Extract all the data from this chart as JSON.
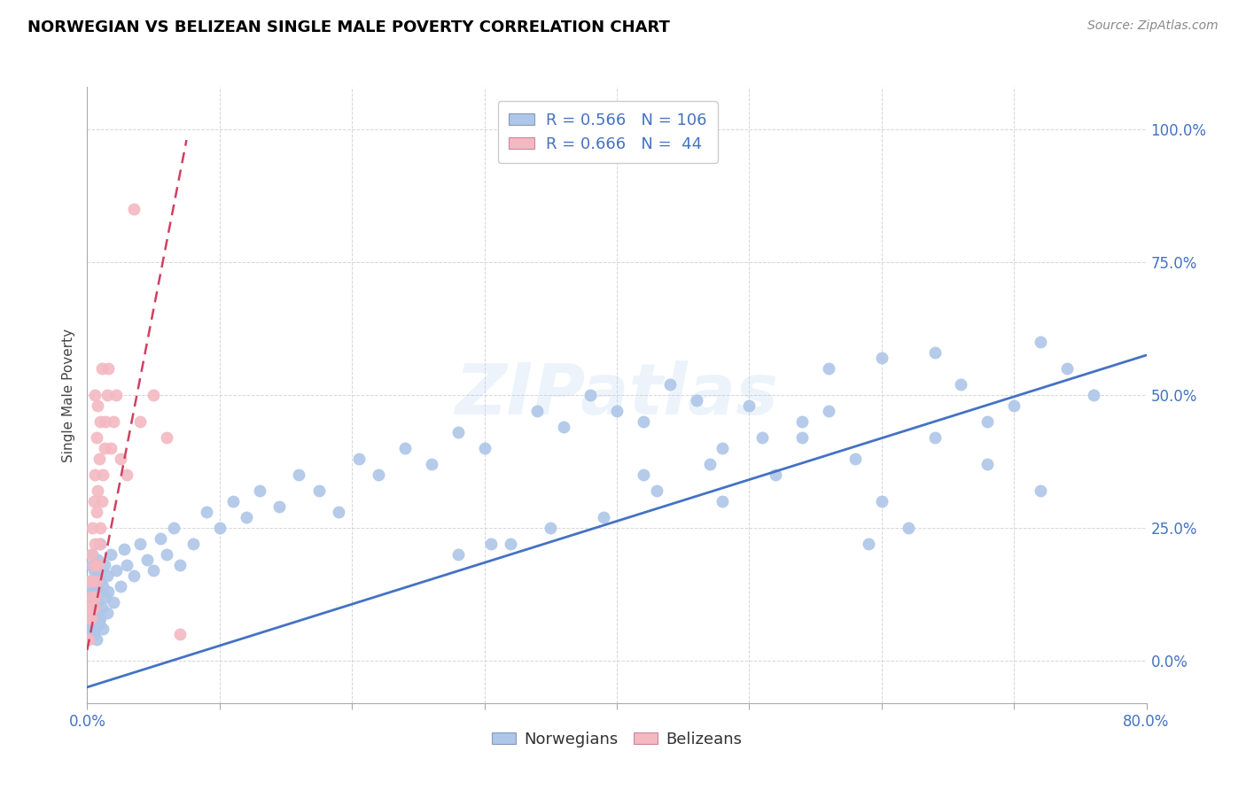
{
  "title": "NORWEGIAN VS BELIZEAN SINGLE MALE POVERTY CORRELATION CHART",
  "source": "Source: ZipAtlas.com",
  "ylabel": "Single Male Poverty",
  "xlim": [
    0.0,
    0.8
  ],
  "ylim": [
    -0.08,
    1.08
  ],
  "norwegian_color": "#aec6e8",
  "belizean_color": "#f4b8c1",
  "trend_norwegian_color": "#4472c4",
  "trend_belizean_color": "#d04060",
  "R_norwegian": 0.566,
  "N_norwegian": 106,
  "R_belizean": 0.666,
  "N_belizean": 44,
  "watermark": "ZIPatlas",
  "background_color": "#ffffff",
  "grid_color": "#cccccc",
  "title_color": "#000000",
  "source_color": "#888888",
  "nor_trend_x": [
    0.0,
    0.8
  ],
  "nor_trend_y": [
    -0.05,
    0.575
  ],
  "bel_trend_x": [
    0.0,
    0.075
  ],
  "bel_trend_y": [
    0.02,
    0.98
  ],
  "nor_x": [
    0.001,
    0.001,
    0.002,
    0.002,
    0.002,
    0.003,
    0.003,
    0.003,
    0.003,
    0.004,
    0.004,
    0.004,
    0.005,
    0.005,
    0.005,
    0.005,
    0.006,
    0.006,
    0.006,
    0.007,
    0.007,
    0.007,
    0.008,
    0.008,
    0.009,
    0.009,
    0.01,
    0.01,
    0.01,
    0.011,
    0.012,
    0.012,
    0.013,
    0.014,
    0.015,
    0.015,
    0.016,
    0.018,
    0.02,
    0.022,
    0.025,
    0.028,
    0.03,
    0.035,
    0.04,
    0.045,
    0.05,
    0.055,
    0.06,
    0.065,
    0.07,
    0.08,
    0.09,
    0.1,
    0.11,
    0.12,
    0.13,
    0.145,
    0.16,
    0.175,
    0.19,
    0.205,
    0.22,
    0.24,
    0.26,
    0.28,
    0.3,
    0.32,
    0.34,
    0.36,
    0.38,
    0.4,
    0.42,
    0.44,
    0.46,
    0.48,
    0.5,
    0.52,
    0.54,
    0.56,
    0.58,
    0.6,
    0.62,
    0.64,
    0.66,
    0.68,
    0.7,
    0.72,
    0.74,
    0.76,
    0.305,
    0.39,
    0.43,
    0.47,
    0.51,
    0.56,
    0.59,
    0.64,
    0.68,
    0.72,
    0.28,
    0.35,
    0.42,
    0.48,
    0.54,
    0.6
  ],
  "nor_y": [
    0.05,
    0.12,
    0.08,
    0.15,
    0.1,
    0.06,
    0.14,
    0.09,
    0.18,
    0.07,
    0.13,
    0.2,
    0.05,
    0.1,
    0.17,
    0.08,
    0.12,
    0.06,
    0.15,
    0.09,
    0.16,
    0.04,
    0.11,
    0.19,
    0.07,
    0.13,
    0.08,
    0.15,
    0.22,
    0.1,
    0.14,
    0.06,
    0.18,
    0.12,
    0.09,
    0.16,
    0.13,
    0.2,
    0.11,
    0.17,
    0.14,
    0.21,
    0.18,
    0.16,
    0.22,
    0.19,
    0.17,
    0.23,
    0.2,
    0.25,
    0.18,
    0.22,
    0.28,
    0.25,
    0.3,
    0.27,
    0.32,
    0.29,
    0.35,
    0.32,
    0.28,
    0.38,
    0.35,
    0.4,
    0.37,
    0.43,
    0.4,
    0.22,
    0.47,
    0.44,
    0.5,
    0.47,
    0.45,
    0.52,
    0.49,
    0.3,
    0.48,
    0.35,
    0.42,
    0.55,
    0.38,
    0.57,
    0.25,
    0.58,
    0.52,
    0.45,
    0.48,
    0.6,
    0.55,
    0.5,
    0.22,
    0.27,
    0.32,
    0.37,
    0.42,
    0.47,
    0.22,
    0.42,
    0.37,
    0.32,
    0.2,
    0.25,
    0.35,
    0.4,
    0.45,
    0.3
  ],
  "bel_x": [
    0.001,
    0.001,
    0.002,
    0.002,
    0.003,
    0.003,
    0.003,
    0.004,
    0.004,
    0.004,
    0.005,
    0.005,
    0.005,
    0.006,
    0.006,
    0.006,
    0.006,
    0.007,
    0.007,
    0.007,
    0.008,
    0.008,
    0.008,
    0.009,
    0.009,
    0.01,
    0.01,
    0.011,
    0.011,
    0.012,
    0.013,
    0.014,
    0.015,
    0.016,
    0.018,
    0.02,
    0.022,
    0.025,
    0.03,
    0.035,
    0.04,
    0.05,
    0.06,
    0.07
  ],
  "bel_y": [
    0.04,
    0.08,
    0.1,
    0.15,
    0.08,
    0.12,
    0.2,
    0.1,
    0.15,
    0.25,
    0.1,
    0.18,
    0.3,
    0.12,
    0.22,
    0.35,
    0.5,
    0.15,
    0.28,
    0.42,
    0.18,
    0.32,
    0.48,
    0.22,
    0.38,
    0.25,
    0.45,
    0.3,
    0.55,
    0.35,
    0.4,
    0.45,
    0.5,
    0.55,
    0.4,
    0.45,
    0.5,
    0.38,
    0.35,
    0.85,
    0.45,
    0.5,
    0.42,
    0.05
  ]
}
